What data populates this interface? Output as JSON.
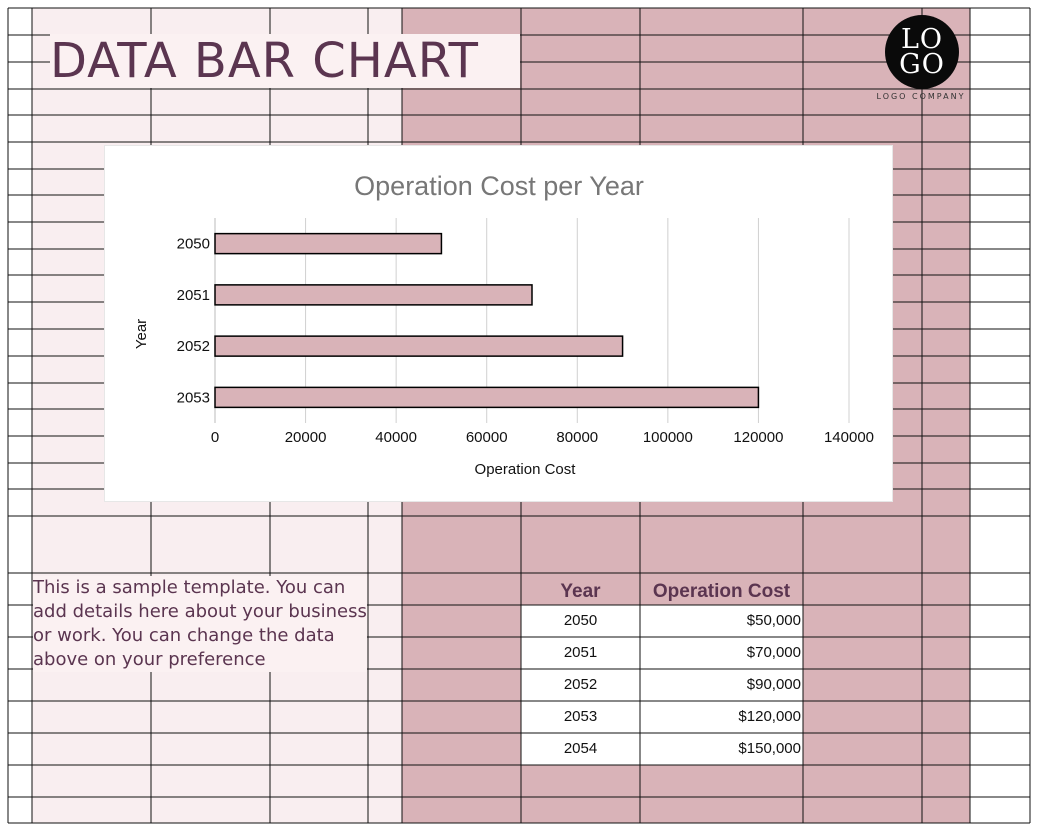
{
  "header": {
    "title": "DATA BAR CHART",
    "logo_line1": "LO",
    "logo_line2": "GO",
    "logo_company": "LOGO COMPANY"
  },
  "note": {
    "text": "This is a sample template. You can add details here about your business or work. You can change the data above on your preference"
  },
  "table": {
    "headers": [
      "Year",
      "Operation Cost"
    ],
    "rows": [
      {
        "year": "2050",
        "cost": "$50,000"
      },
      {
        "year": "2051",
        "cost": "$70,000"
      },
      {
        "year": "2052",
        "cost": "$90,000"
      },
      {
        "year": "2053",
        "cost": "$120,000"
      },
      {
        "year": "2054",
        "cost": "$150,000"
      }
    ]
  },
  "colors": {
    "accent": "#d9b3b8",
    "light": "#f9eef0",
    "title": "#5b3550"
  },
  "chart_data": {
    "type": "bar",
    "orientation": "horizontal",
    "title": "Operation Cost per Year",
    "xlabel": "Operation Cost",
    "ylabel": "Year",
    "categories": [
      "2050",
      "2051",
      "2052",
      "2053"
    ],
    "values": [
      50000,
      70000,
      90000,
      120000
    ],
    "xlim": [
      0,
      140000
    ],
    "x_ticks": [
      "0",
      "20000",
      "40000",
      "60000",
      "80000",
      "100000",
      "120000",
      "140000"
    ],
    "grid": "vertical"
  }
}
